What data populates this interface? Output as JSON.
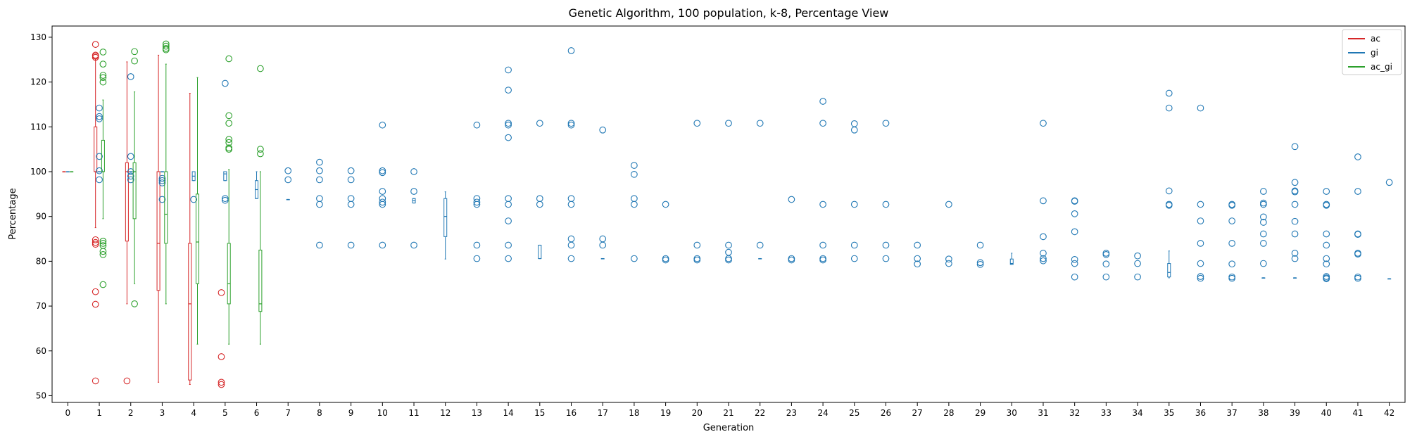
{
  "chart_data": {
    "type": "box",
    "title": "Genetic Algorithm, 100 population, k-8, Percentage View",
    "xlabel": "Generation",
    "ylabel": "Percentage",
    "xlim": [
      -0.5,
      42.5
    ],
    "ylim": [
      48.5,
      132.5
    ],
    "yticks": [
      50,
      60,
      70,
      80,
      90,
      100,
      110,
      120,
      130
    ],
    "categories": [
      "0",
      "1",
      "2",
      "3",
      "4",
      "5",
      "6",
      "7",
      "8",
      "9",
      "10",
      "11",
      "12",
      "13",
      "14",
      "15",
      "16",
      "17",
      "18",
      "19",
      "20",
      "21",
      "22",
      "23",
      "24",
      "25",
      "26",
      "27",
      "28",
      "29",
      "30",
      "31",
      "32",
      "33",
      "34",
      "35",
      "36",
      "37",
      "38",
      "39",
      "40",
      "41",
      "42"
    ],
    "legend": {
      "position": "top-right",
      "entries": [
        "ac",
        "gi",
        "ac_gi"
      ]
    },
    "grid": false,
    "series": [
      {
        "name": "ac",
        "color": "#d62728",
        "boxes": [
          {
            "gen": 0,
            "min": 100,
            "q1": 100,
            "med": 100,
            "q3": 100,
            "max": 100,
            "fliers": []
          },
          {
            "gen": 1,
            "min": 87.5,
            "q1": 100,
            "med": 100,
            "q3": 110,
            "max": 125,
            "fliers": [
              128.4,
              126,
              125.8,
              125.5,
              84.8,
              84.2,
              83.8,
              73.2,
              70.4,
              53.3
            ]
          },
          {
            "gen": 2,
            "min": 70.5,
            "q1": 84.5,
            "med": 100,
            "q3": 102,
            "max": 124.5,
            "fliers": [
              53.3
            ]
          },
          {
            "gen": 3,
            "min": 53,
            "q1": 73.5,
            "med": 84,
            "q3": 100,
            "max": 126,
            "fliers": []
          },
          {
            "gen": 4,
            "min": 52.5,
            "q1": 53.5,
            "med": 70.5,
            "q3": 84,
            "max": 117.5,
            "fliers": []
          },
          {
            "gen": 5,
            "min": null,
            "q1": null,
            "med": null,
            "q3": null,
            "max": null,
            "fliers": [
              73,
              58.7,
              53,
              52.5
            ]
          }
        ]
      },
      {
        "name": "gi",
        "color": "#1f77b4",
        "boxes": [
          {
            "gen": 0,
            "min": 100,
            "q1": 100,
            "med": 100,
            "q3": 100,
            "max": 100,
            "fliers": []
          },
          {
            "gen": 1,
            "min": 100,
            "q1": 100,
            "med": 100,
            "q3": 100,
            "max": 100,
            "fliers": [
              114.2,
              112.3,
              111.8,
              103.4,
              100.2,
              98.2
            ]
          },
          {
            "gen": 2,
            "min": 100,
            "q1": 100,
            "med": 100,
            "q3": 100,
            "max": 100,
            "fliers": [
              121.2,
              103.4,
              100,
              99,
              98.2
            ]
          },
          {
            "gen": 3,
            "min": 100,
            "q1": 100,
            "med": 100,
            "q3": 100,
            "max": 100,
            "fliers": [
              98.5,
              98,
              97.5,
              93.8
            ]
          },
          {
            "gen": 4,
            "min": 98,
            "q1": 98,
            "med": 99,
            "q3": 100,
            "max": 100,
            "fliers": [
              93.8
            ]
          },
          {
            "gen": 5,
            "min": 98,
            "q1": 98,
            "med": 99.5,
            "q3": 100,
            "max": 100,
            "fliers": [
              119.7,
              94,
              93.6
            ]
          },
          {
            "gen": 6,
            "min": 94,
            "q1": 94,
            "med": 96,
            "q3": 98,
            "max": 100,
            "fliers": []
          },
          {
            "gen": 7,
            "min": 93.8,
            "q1": 93.8,
            "med": 93.8,
            "q3": 93.8,
            "max": 93.8,
            "fliers": [
              100.2,
              98.2
            ]
          },
          {
            "gen": 8,
            "min": null,
            "q1": null,
            "med": null,
            "q3": null,
            "max": null,
            "fliers": [
              102.1,
              100.2,
              98.2,
              94,
              92.7,
              83.6
            ]
          },
          {
            "gen": 9,
            "min": null,
            "q1": null,
            "med": null,
            "q3": null,
            "max": null,
            "fliers": [
              100.2,
              98.2,
              94,
              92.7,
              83.6
            ]
          },
          {
            "gen": 10,
            "min": null,
            "q1": null,
            "med": null,
            "q3": null,
            "max": null,
            "fliers": [
              110.4,
              100.2,
              99.8,
              95.6,
              94,
              93.2,
              92.7,
              83.6
            ]
          },
          {
            "gen": 11,
            "min": 93,
            "q1": 93,
            "med": 93.5,
            "q3": 94,
            "max": 94,
            "fliers": [
              100,
              95.6,
              83.6
            ]
          },
          {
            "gen": 12,
            "min": 80.5,
            "q1": 85.5,
            "med": 90,
            "q3": 94,
            "max": 95.5,
            "fliers": []
          },
          {
            "gen": 13,
            "min": null,
            "q1": null,
            "med": null,
            "q3": null,
            "max": null,
            "fliers": [
              110.4,
              94,
              93.2,
              92.7,
              83.6,
              80.6
            ]
          },
          {
            "gen": 14,
            "min": null,
            "q1": null,
            "med": null,
            "q3": null,
            "max": null,
            "fliers": [
              122.7,
              118.2,
              110.8,
              110.4,
              107.6,
              94,
              92.7,
              89,
              83.6,
              80.6
            ]
          },
          {
            "gen": 15,
            "min": 80.6,
            "q1": 80.6,
            "med": 80.6,
            "q3": 83.6,
            "max": 83.6,
            "fliers": [
              110.8,
              94,
              92.7
            ]
          },
          {
            "gen": 16,
            "min": null,
            "q1": null,
            "med": null,
            "q3": null,
            "max": null,
            "fliers": [
              127,
              110.8,
              110.4,
              94,
              92.7,
              85,
              83.6,
              80.6
            ]
          },
          {
            "gen": 17,
            "min": 80.6,
            "q1": 80.6,
            "med": 80.6,
            "q3": 80.6,
            "max": 80.6,
            "fliers": [
              109.3,
              85,
              83.6
            ]
          },
          {
            "gen": 18,
            "min": null,
            "q1": null,
            "med": null,
            "q3": null,
            "max": null,
            "fliers": [
              101.4,
              99.4,
              94,
              92.7,
              80.6
            ]
          },
          {
            "gen": 19,
            "min": null,
            "q1": null,
            "med": null,
            "q3": null,
            "max": null,
            "fliers": [
              92.7,
              80.6,
              80.3
            ]
          },
          {
            "gen": 20,
            "min": null,
            "q1": null,
            "med": null,
            "q3": null,
            "max": null,
            "fliers": [
              110.8,
              83.6,
              80.6,
              80.3
            ]
          },
          {
            "gen": 21,
            "min": null,
            "q1": null,
            "med": null,
            "q3": null,
            "max": null,
            "fliers": [
              110.8,
              83.6,
              82,
              80.6,
              80.3
            ]
          },
          {
            "gen": 22,
            "min": 80.6,
            "q1": 80.6,
            "med": 80.6,
            "q3": 80.6,
            "max": 80.6,
            "fliers": [
              110.8,
              83.6
            ]
          },
          {
            "gen": 23,
            "min": null,
            "q1": null,
            "med": null,
            "q3": null,
            "max": null,
            "fliers": [
              93.8,
              80.6,
              80.3
            ]
          },
          {
            "gen": 24,
            "min": null,
            "q1": null,
            "med": null,
            "q3": null,
            "max": null,
            "fliers": [
              115.7,
              110.8,
              92.7,
              83.6,
              80.6,
              80.3
            ]
          },
          {
            "gen": 25,
            "min": null,
            "q1": null,
            "med": null,
            "q3": null,
            "max": null,
            "fliers": [
              110.7,
              109.3,
              92.7,
              83.6,
              80.6
            ]
          },
          {
            "gen": 26,
            "min": null,
            "q1": null,
            "med": null,
            "q3": null,
            "max": null,
            "fliers": [
              110.8,
              92.7,
              83.6,
              80.6
            ]
          },
          {
            "gen": 27,
            "min": null,
            "q1": null,
            "med": null,
            "q3": null,
            "max": null,
            "fliers": [
              83.6,
              80.6,
              79.4
            ]
          },
          {
            "gen": 28,
            "min": null,
            "q1": null,
            "med": null,
            "q3": null,
            "max": null,
            "fliers": [
              92.7,
              80.5,
              79.5
            ]
          },
          {
            "gen": 29,
            "min": null,
            "q1": null,
            "med": null,
            "q3": null,
            "max": null,
            "fliers": [
              83.6,
              79.7,
              79.3
            ]
          },
          {
            "gen": 30,
            "min": 79.3,
            "q1": 79.3,
            "med": 79.5,
            "q3": 80.5,
            "max": 81.8,
            "fliers": []
          },
          {
            "gen": 31,
            "min": null,
            "q1": null,
            "med": null,
            "q3": null,
            "max": null,
            "fliers": [
              110.8,
              93.5,
              85.5,
              81.8,
              80.6,
              80.1
            ]
          },
          {
            "gen": 32,
            "min": null,
            "q1": null,
            "med": null,
            "q3": null,
            "max": null,
            "fliers": [
              93.5,
              93.4,
              90.6,
              86.6,
              80.4,
              79.5,
              76.5
            ]
          },
          {
            "gen": 33,
            "min": null,
            "q1": null,
            "med": null,
            "q3": null,
            "max": null,
            "fliers": [
              81.8,
              81.5,
              79.4,
              76.5
            ]
          },
          {
            "gen": 34,
            "min": null,
            "q1": null,
            "med": null,
            "q3": null,
            "max": null,
            "fliers": [
              81.2,
              79.5,
              76.5
            ]
          },
          {
            "gen": 35,
            "min": 76.3,
            "q1": 76.5,
            "med": 77.5,
            "q3": 79.5,
            "max": 82.3,
            "fliers": [
              117.5,
              114.2,
              95.7,
              92.7,
              92.5
            ]
          },
          {
            "gen": 36,
            "min": null,
            "q1": null,
            "med": null,
            "q3": null,
            "max": null,
            "fliers": [
              114.2,
              92.7,
              89,
              84,
              79.5,
              76.6,
              76.2
            ]
          },
          {
            "gen": 37,
            "min": null,
            "q1": null,
            "med": null,
            "q3": null,
            "max": null,
            "fliers": [
              92.7,
              92.5,
              89,
              84,
              79.4,
              76.5,
              76.2
            ]
          },
          {
            "gen": 38,
            "min": 76.3,
            "q1": 76.3,
            "med": 76.3,
            "q3": 76.3,
            "max": 76.3,
            "fliers": [
              95.6,
              93,
              92.7,
              89.9,
              88.7,
              86.1,
              84,
              79.5
            ]
          },
          {
            "gen": 39,
            "min": 76.3,
            "q1": 76.3,
            "med": 76.3,
            "q3": 76.3,
            "max": 76.3,
            "fliers": [
              105.6,
              97.6,
              95.7,
              95.5,
              92.7,
              88.9,
              86.1,
              81.8,
              80.6
            ]
          },
          {
            "gen": 40,
            "min": null,
            "q1": null,
            "med": null,
            "q3": null,
            "max": null,
            "fliers": [
              95.6,
              92.7,
              92.5,
              86.1,
              83.6,
              80.6,
              79.4,
              76.6,
              76.3,
              76.1
            ]
          },
          {
            "gen": 41,
            "min": null,
            "q1": null,
            "med": null,
            "q3": null,
            "max": null,
            "fliers": [
              103.3,
              95.6,
              86.1,
              86,
              81.8,
              81.6,
              76.5,
              76.2
            ]
          },
          {
            "gen": 42,
            "min": 76.1,
            "q1": 76.1,
            "med": 76.1,
            "q3": 76.1,
            "max": 76.1,
            "fliers": [
              97.6
            ]
          }
        ]
      },
      {
        "name": "ac_gi",
        "color": "#2ca02c",
        "boxes": [
          {
            "gen": 0,
            "min": 100,
            "q1": 100,
            "med": 100,
            "q3": 100,
            "max": 100,
            "fliers": []
          },
          {
            "gen": 1,
            "min": 89.5,
            "q1": 100,
            "med": 100,
            "q3": 107,
            "max": 116,
            "fliers": [
              126.7,
              124,
              121.5,
              121,
              120,
              84.5,
              84,
              83.5,
              82.2,
              81.5,
              74.8
            ]
          },
          {
            "gen": 2,
            "min": 75,
            "q1": 89.5,
            "med": 100,
            "q3": 102,
            "max": 117.8,
            "fliers": [
              126.8,
              124.7,
              70.5
            ]
          },
          {
            "gen": 3,
            "min": 70.5,
            "q1": 84,
            "med": 90.5,
            "q3": 100,
            "max": 124,
            "fliers": [
              128.5,
              128,
              127.5,
              127.2
            ]
          },
          {
            "gen": 4,
            "min": 61.5,
            "q1": 75,
            "med": 84.3,
            "q3": 95,
            "max": 121,
            "fliers": []
          },
          {
            "gen": 5,
            "min": 61.5,
            "q1": 70.5,
            "med": 75,
            "q3": 84,
            "max": 100.5,
            "fliers": [
              125.2,
              112.5,
              110.8,
              107.2,
              106.5,
              105.3,
              105
            ]
          },
          {
            "gen": 6,
            "min": 61.5,
            "q1": 68.8,
            "med": 70.5,
            "q3": 82.5,
            "max": 100,
            "fliers": [
              123,
              105,
              104
            ]
          }
        ]
      }
    ]
  }
}
